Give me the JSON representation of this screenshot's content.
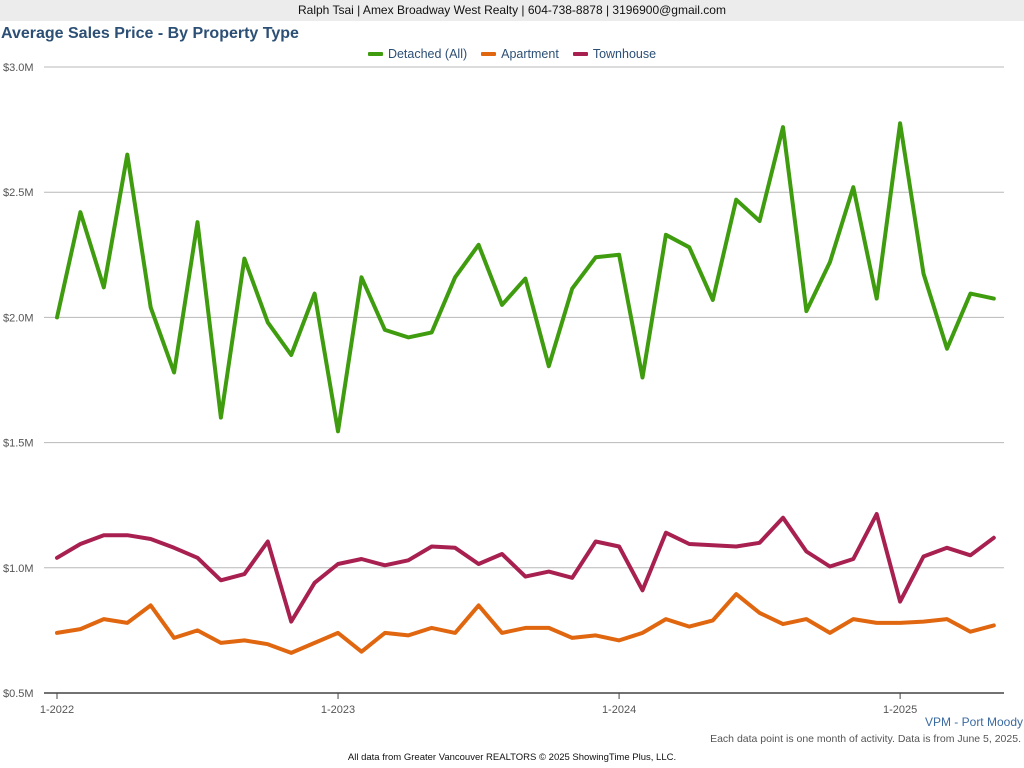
{
  "header": {
    "contact": "Ralph Tsai | Amex Broadway West Realty | 604-738-8878 | 3196900@gmail.com"
  },
  "footer": {
    "region": "VPM - Port Moody",
    "note": "Each data point is one month of activity. Data is from June 5, 2025.",
    "source": "All data from Greater Vancouver REALTORS © 2025 ShowingTime Plus, LLC."
  },
  "chart_data": {
    "type": "line",
    "title": "Average Sales Price - By Property Type",
    "x": [
      "2022-01",
      "2022-02",
      "2022-03",
      "2022-04",
      "2022-05",
      "2022-06",
      "2022-07",
      "2022-08",
      "2022-09",
      "2022-10",
      "2022-11",
      "2022-12",
      "2023-01",
      "2023-02",
      "2023-03",
      "2023-04",
      "2023-05",
      "2023-06",
      "2023-07",
      "2023-08",
      "2023-09",
      "2023-10",
      "2023-11",
      "2023-12",
      "2024-01",
      "2024-02",
      "2024-03",
      "2024-04",
      "2024-05",
      "2024-06",
      "2024-07",
      "2024-08",
      "2024-09",
      "2024-10",
      "2024-11",
      "2024-12",
      "2025-01",
      "2025-02",
      "2025-03",
      "2025-04",
      "2025-05"
    ],
    "x_ticks": [
      "1-2022",
      "1-2023",
      "1-2024",
      "1-2025"
    ],
    "y_ticks": [
      "$0.5M",
      "$1.0M",
      "$1.5M",
      "$2.0M",
      "$2.5M",
      "$3.0M"
    ],
    "ylim": [
      500000,
      3000000
    ],
    "grid": true,
    "legend_position": "top-center",
    "series": [
      {
        "name": "Detached (All)",
        "color": "#3f9c0f",
        "values": [
          2000000,
          2420000,
          2120000,
          2650000,
          2040000,
          1780000,
          2380000,
          1600000,
          2235000,
          1980000,
          1850000,
          2095000,
          1545000,
          2160000,
          1950000,
          1920000,
          1940000,
          2160000,
          2290000,
          2050000,
          2155000,
          1805000,
          2115000,
          2240000,
          2250000,
          1760000,
          2330000,
          2280000,
          2070000,
          2470000,
          2385000,
          2760000,
          2025000,
          2220000,
          2520000,
          2075000,
          2775000,
          2175000,
          1875000,
          2095000,
          2075000
        ]
      },
      {
        "name": "Apartment",
        "color": "#e0670f",
        "values": [
          740000,
          755000,
          795000,
          780000,
          850000,
          720000,
          750000,
          700000,
          710000,
          695000,
          660000,
          700000,
          740000,
          665000,
          740000,
          730000,
          760000,
          740000,
          850000,
          740000,
          760000,
          760000,
          720000,
          730000,
          710000,
          740000,
          795000,
          765000,
          790000,
          895000,
          820000,
          775000,
          795000,
          740000,
          795000,
          780000,
          780000,
          785000,
          795000,
          745000,
          770000
        ]
      },
      {
        "name": "Townhouse",
        "color": "#a82050",
        "values": [
          1040000,
          1095000,
          1130000,
          1130000,
          1115000,
          1080000,
          1040000,
          950000,
          975000,
          1105000,
          785000,
          940000,
          1015000,
          1035000,
          1010000,
          1030000,
          1085000,
          1080000,
          1015000,
          1055000,
          965000,
          985000,
          960000,
          1105000,
          1085000,
          910000,
          1140000,
          1095000,
          1090000,
          1085000,
          1100000,
          1200000,
          1065000,
          1005000,
          1035000,
          1215000,
          865000,
          1045000,
          1080000,
          1050000,
          1120000
        ]
      }
    ]
  }
}
